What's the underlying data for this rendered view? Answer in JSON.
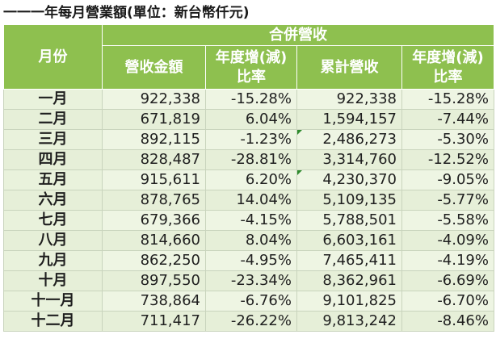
{
  "title": "一一一年每月營業額(單位：新台幣仟元)",
  "header": {
    "month_col": "月份",
    "group": "合併營收",
    "revenue": "營收金額",
    "yoy": "年度增(減)比率",
    "cumulative": "累計營收",
    "cum_yoy": "年度增(減)比率"
  },
  "rows": [
    {
      "month": "一月",
      "revenue": "922,338",
      "yoy": "-15.28%",
      "cumulative": "922,338",
      "cum_yoy": "-15.28%"
    },
    {
      "month": "二月",
      "revenue": "671,819",
      "yoy": "6.04%",
      "cumulative": "1,594,157",
      "cum_yoy": "-7.44%"
    },
    {
      "month": "三月",
      "revenue": "892,115",
      "yoy": "-1.23%",
      "cumulative": "2,486,273",
      "cum_yoy": "-5.30%"
    },
    {
      "month": "四月",
      "revenue": "828,487",
      "yoy": "-28.81%",
      "cumulative": "3,314,760",
      "cum_yoy": "-12.52%"
    },
    {
      "month": "五月",
      "revenue": "915,611",
      "yoy": "6.20%",
      "cumulative": "4,230,370",
      "cum_yoy": "-9.05%"
    },
    {
      "month": "六月",
      "revenue": "878,765",
      "yoy": "14.04%",
      "cumulative": "5,109,135",
      "cum_yoy": "-5.77%"
    },
    {
      "month": "七月",
      "revenue": "679,366",
      "yoy": "-4.15%",
      "cumulative": "5,788,501",
      "cum_yoy": "-5.58%"
    },
    {
      "month": "八月",
      "revenue": "814,660",
      "yoy": "8.04%",
      "cumulative": "6,603,161",
      "cum_yoy": "-4.09%"
    },
    {
      "month": "九月",
      "revenue": "862,250",
      "yoy": "-4.95%",
      "cumulative": "7,465,411",
      "cum_yoy": "-4.19%"
    },
    {
      "month": "十月",
      "revenue": "897,550",
      "yoy": "-23.34%",
      "cumulative": "8,362,961",
      "cum_yoy": "-6.69%"
    },
    {
      "month": "十一月",
      "revenue": "738,864",
      "yoy": "-6.76%",
      "cumulative": "9,101,825",
      "cum_yoy": "-6.70%"
    },
    {
      "month": "十二月",
      "revenue": "711,417",
      "yoy": "-26.22%",
      "cumulative": "9,813,242",
      "cum_yoy": "-8.46%"
    }
  ],
  "colors": {
    "header_bg": "#8ec04f",
    "cell_bg": "#eef5e3",
    "marker": "#2e8b2e"
  }
}
